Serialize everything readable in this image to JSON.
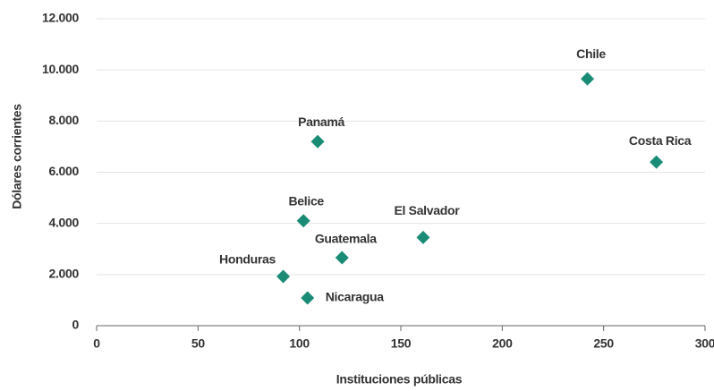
{
  "chart_data": {
    "type": "scatter",
    "xlabel": "Instituciones públicas",
    "ylabel": "Dólares corrientes",
    "color": "#1a8c76",
    "grid": true,
    "labels": [
      "Chile",
      "Costa Rica",
      "Panamá",
      "Belice",
      "El Salvador",
      "Guatemala",
      "Honduras",
      "Nicaragua"
    ],
    "x": [
      242,
      276,
      109,
      102,
      161,
      121,
      92,
      104
    ],
    "values": [
      9650,
      6400,
      7200,
      4100,
      3450,
      2660,
      1925,
      1085
    ],
    "xlim": [
      0,
      300
    ],
    "xticks": [
      0,
      50,
      100,
      150,
      200,
      250,
      300
    ],
    "ylim": [
      0,
      12000
    ],
    "yticks": [
      0,
      {
        "value": 2000,
        "label": "2.000"
      },
      {
        "value": 4000,
        "label": "4.000"
      },
      {
        "value": 6000,
        "label": "6.000"
      },
      {
        "value": 8000,
        "label": "8.000"
      },
      {
        "value": 10000,
        "label": "10.000"
      },
      {
        "value": 12000,
        "label": "12.000"
      }
    ]
  }
}
